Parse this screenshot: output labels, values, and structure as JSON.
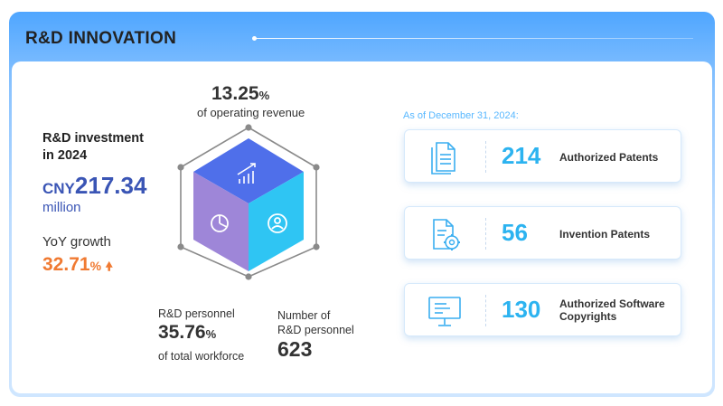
{
  "header": {
    "title": "R&D INNOVATION"
  },
  "investment": {
    "label_line1": "R&D investment",
    "label_line2": "in 2024",
    "currency": "CNY",
    "amount": "217.34",
    "unit": "million",
    "yoy_label": "YoY growth",
    "yoy_value": "32.71",
    "yoy_unit": "%"
  },
  "operating_revenue": {
    "value": "13.25",
    "unit": "%",
    "label": "of operating revenue"
  },
  "personnel_ratio": {
    "label": "R&D personnel",
    "value": "35.76",
    "unit": "%",
    "sub": "of total workforce"
  },
  "personnel_count": {
    "label_line1": "Number of",
    "label_line2": "R&D personnel",
    "value": "623"
  },
  "as_of": "As of December 31, 2024:",
  "cards": [
    {
      "number": "214",
      "label_line1": "Authorized Patents",
      "label_line2": "",
      "icon": "document-icon"
    },
    {
      "number": "56",
      "label_line1": "Invention Patents",
      "label_line2": "",
      "icon": "gear-document-icon"
    },
    {
      "number": "130",
      "label_line1": "Authorized Software",
      "label_line2": "Copyrights",
      "icon": "monitor-icon"
    }
  ],
  "colors": {
    "header_blue": "#4fa6ff",
    "investment_blue": "#3a55b5",
    "growth_orange": "#f07a32",
    "card_number_cyan": "#2cb3f0",
    "cube_top": "#4f6fea",
    "cube_left": "#9e86d8",
    "cube_right": "#2fc5f3"
  }
}
